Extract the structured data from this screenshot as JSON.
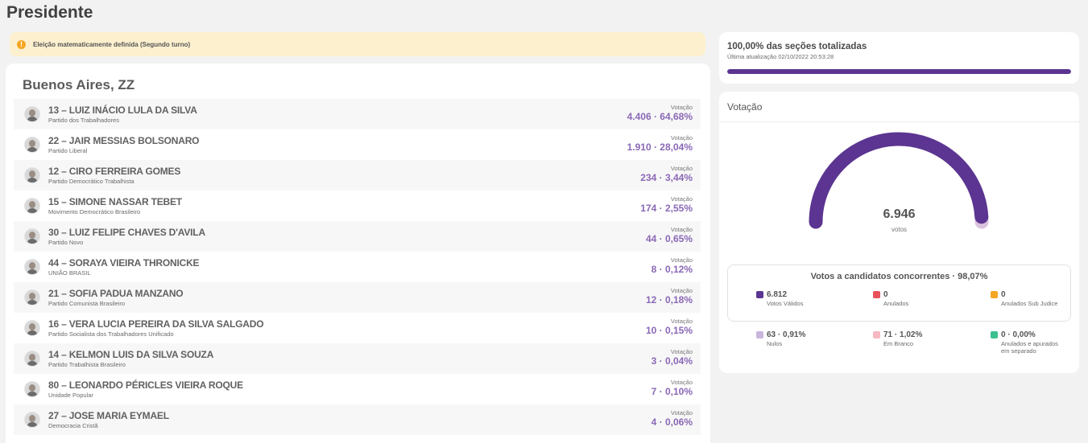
{
  "page": {
    "title": "Presidente"
  },
  "alert": {
    "icon": "info-icon",
    "text": "Eleição matematicamente definida (Segundo turno)"
  },
  "region": {
    "title": "Buenos Aires, ZZ"
  },
  "candidates": [
    {
      "name": "13 – LUIZ INÁCIO LULA DA SILVA",
      "party": "Partido dos Trabalhadores",
      "vote_label": "Votação",
      "votes": "4.406 · 64,68%"
    },
    {
      "name": "22 – JAIR MESSIAS BOLSONARO",
      "party": "Partido Liberal",
      "vote_label": "Votação",
      "votes": "1.910 · 28,04%"
    },
    {
      "name": "12 – CIRO FERREIRA GOMES",
      "party": "Partido Democrático Trabalhista",
      "vote_label": "Votação",
      "votes": "234 · 3,44%"
    },
    {
      "name": "15 – SIMONE NASSAR TEBET",
      "party": "Movimento Democrático Brasileiro",
      "vote_label": "Votação",
      "votes": "174 · 2,55%"
    },
    {
      "name": "30 – LUIZ FELIPE CHAVES D'AVILA",
      "party": "Partido Novo",
      "vote_label": "Votação",
      "votes": "44 · 0,65%"
    },
    {
      "name": "44 – SORAYA VIEIRA THRONICKE",
      "party": "UNIÃO BRASIL",
      "vote_label": "Votação",
      "votes": "8 · 0,12%"
    },
    {
      "name": "21 – SOFIA PADUA MANZANO",
      "party": "Partido Comunista Brasileiro",
      "vote_label": "Votação",
      "votes": "12 · 0,18%"
    },
    {
      "name": "16 – VERA LUCIA PEREIRA DA SILVA SALGADO",
      "party": "Partido Socialista dos Trabalhadores Unificado",
      "vote_label": "Votação",
      "votes": "10 · 0,15%"
    },
    {
      "name": "14 – KELMON LUIS DA SILVA SOUZA",
      "party": "Partido Trabalhista Brasileiro",
      "vote_label": "Votação",
      "votes": "3 · 0,04%"
    },
    {
      "name": "80 – LEONARDO PÉRICLES VIEIRA ROQUE",
      "party": "Unidade Popular",
      "vote_label": "Votação",
      "votes": "7 · 0,10%"
    },
    {
      "name": "27 – JOSE MARIA EYMAEL",
      "party": "Democracia Cristã",
      "vote_label": "Votação",
      "votes": "4 · 0,06%"
    }
  ],
  "sections": {
    "title": "100,00% das seções totalizadas",
    "updated": "Última atualização 02/10/2022 20:53:28",
    "progress_percent": 100,
    "bar_color": "#5b3591"
  },
  "votacao": {
    "header": "Votação",
    "total": "6.946",
    "total_unit": "votos",
    "gauge_fraction_valid": 0.9807,
    "colors": {
      "valid": "#5b3591",
      "remainder": "#d9c2dc"
    },
    "competing_title": "Votos a candidatos concorrentes · 98,07%",
    "legend": [
      {
        "value": "6.812",
        "label": "Votos Válidos",
        "color": "#5b3591"
      },
      {
        "value": "0",
        "label": "Anulados",
        "color": "#e8505b"
      },
      {
        "value": "0",
        "label": "Anulados Sub Judice",
        "color": "#f5a623"
      },
      {
        "value": "63 · 0,91%",
        "label": "Nulos",
        "color": "#c8b4dc"
      },
      {
        "value": "71 · 1,02%",
        "label": "Em Branco",
        "color": "#f7b8c2"
      },
      {
        "value": "0 · 0,00%",
        "label": "Anulados e apurados em separado",
        "color": "#3cc08f"
      }
    ]
  }
}
